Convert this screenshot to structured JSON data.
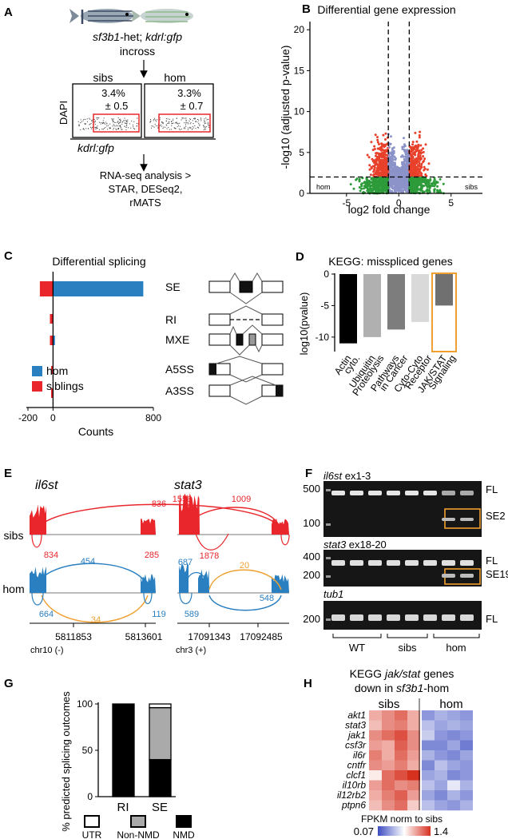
{
  "panels": {
    "A": {
      "letter": "A",
      "cross_line1a": "sf3b1",
      "cross_line1b": "-het; ",
      "cross_line1c": "kdrl:gfp",
      "cross_line2": "incross",
      "sibs_label": "sibs",
      "hom_label": "hom",
      "sibs_pct": "3.4%",
      "sibs_sd": "± 0.5",
      "hom_pct": "3.3%",
      "hom_sd": "± 0.7",
      "y_axis": "DAPI",
      "x_axis": "kdrl:gfp",
      "analysis_line1": "RNA-seq analysis >",
      "analysis_line2": "STAR, DESeq2,",
      "analysis_line3": "rMATS"
    },
    "B": {
      "letter": "B",
      "title": "Differential gene expression",
      "xlabel": "log2 fold change",
      "ylabel": "-log10 (adjusted p-value)",
      "left_note": "hom",
      "right_note": "sibs",
      "xticks": [
        "-5",
        "0",
        "5"
      ],
      "yticks": [
        "0",
        "5",
        "10",
        "15",
        "20"
      ]
    },
    "C": {
      "letter": "C",
      "title": "Differential splicing",
      "xlabel": "Counts",
      "xticks": [
        "-200",
        "0",
        "800"
      ],
      "legend_hom": "hom",
      "legend_sib": "siblings",
      "event_types": [
        "SE",
        "RI",
        "MXE",
        "A5SS",
        "A3SS"
      ]
    },
    "D": {
      "letter": "D",
      "title": "KEGG: misspliced genes",
      "ylabel": "log10(pvalue)",
      "yticks": [
        "0",
        "-5",
        "-10"
      ],
      "categories": [
        "Actin cyto.",
        "Ubiquitin Proteolysis",
        "Pathways in Cancer",
        "Cyto-Cyto Receptor",
        "JAK/STAT Signaling"
      ]
    },
    "E": {
      "letter": "E",
      "gene1": "il6st",
      "gene2": "stat3",
      "row_sibs": "sibs",
      "row_hom": "hom",
      "il6st_sibs_top": "836",
      "il6st_sibs_left": "834",
      "il6st_sibs_right": "285",
      "il6st_hom_top": "454",
      "il6st_hom_bottom": "34",
      "il6st_hom_left": "664",
      "il6st_hom_right": "119",
      "stat3_sibs_left": "1558",
      "stat3_sibs_top": "1009",
      "stat3_sibs_mid": "1878",
      "stat3_hom_left": "687",
      "stat3_hom_top": "20",
      "stat3_hom_mid": "548",
      "stat3_hom_bottom": "589",
      "il6st_coord1": "5811853",
      "il6st_coord2": "5813601",
      "il6st_chr": "chr10 (-)",
      "stat3_coord1": "17091343",
      "stat3_coord2": "17092485",
      "stat3_chr": "chr3 (+)"
    },
    "F": {
      "letter": "F",
      "gel1_title_gene": "il6st",
      "gel1_title_rest": " ex1-3",
      "gel1_y_top": "500",
      "gel1_y_bottom": "100",
      "gel1_label_top": "FL",
      "gel1_label_bottom": "SE2",
      "gel2_title_gene": "stat3",
      "gel2_title_rest": " ex18-20",
      "gel2_y_top": "400",
      "gel2_y_bottom": "200",
      "gel2_label_top": "FL",
      "gel2_label_bottom": "SE19",
      "gel3_title": "tub1",
      "gel3_y": "200",
      "gel3_label": "FL",
      "groups": [
        "WT",
        "sibs",
        "hom"
      ]
    },
    "G": {
      "letter": "G",
      "ylabel": "% predicted splicing outcomes",
      "yticks": [
        "0",
        "50",
        "100"
      ],
      "legend": [
        "UTR",
        "Non-NMD",
        "NMD"
      ]
    },
    "H": {
      "letter": "H",
      "title_line1": "KEGG jak/stat genes",
      "title_line2a": "down in ",
      "title_line2b": "sf3b1",
      "title_line2c": "-hom",
      "col_sibs": "sibs",
      "col_hom": "hom",
      "genes": [
        "akt1",
        "stat3",
        "jak1",
        "csf3r",
        "il6r",
        "cntfr",
        "clcf1",
        "il10rb",
        "il12rb2",
        "ptpn6"
      ],
      "scale_title": "FPKM norm to sibs",
      "scale_min": "0.07",
      "scale_max": "1.4"
    }
  },
  "chart_data": [
    {
      "type": "scatter",
      "title": "Differential gene expression",
      "xlabel": "log2 fold change",
      "ylabel": "-log10 (adjusted p-value)",
      "xlim": [
        -8.5,
        8
      ],
      "ylim": [
        0,
        21
      ],
      "thresholds": {
        "log2fc": [
          -1,
          1
        ],
        "neg_log10_padj": 2
      },
      "colors": {
        "significant": "#e8402a",
        "fc_only": "#2d9b3a",
        "ns": "#8b93c9"
      }
    },
    {
      "type": "bar",
      "title": "Differential splicing",
      "xlabel": "Counts",
      "orientation": "horizontal",
      "categories": [
        "SE",
        "RI",
        "MXE",
        "A5SS",
        "A3SS"
      ],
      "series": [
        {
          "name": "hom",
          "values": [
            720,
            0,
            15,
            0,
            0
          ],
          "color": "#2a7fc0"
        },
        {
          "name": "siblings",
          "values": [
            -105,
            -25,
            -25,
            -15,
            -15
          ],
          "color": "#e8262b"
        }
      ],
      "xlim": [
        -200,
        800
      ]
    },
    {
      "type": "bar",
      "title": "KEGG: misspliced genes",
      "ylabel": "log10(pvalue)",
      "categories": [
        "Actin cyto.",
        "Ubiquitin Proteolysis",
        "Pathways in Cancer",
        "Cyto-Cyto Receptor",
        "JAK/STAT Signaling"
      ],
      "values": [
        -11,
        -10,
        -8.8,
        -7.6,
        -5
      ],
      "colors": [
        "#000000",
        "#b0b0b0",
        "#7d7d7d",
        "#d9d9d9",
        "#707070"
      ],
      "ylim": [
        -12.3,
        0
      ],
      "highlight": "JAK/STAT Signaling"
    },
    {
      "type": "bar",
      "stacked": true,
      "ylabel": "% predicted splicing outcomes",
      "categories": [
        "RI",
        "SE"
      ],
      "series": [
        {
          "name": "NMD",
          "values": [
            100,
            40
          ]
        },
        {
          "name": "Non-NMD",
          "values": [
            0,
            56
          ]
        },
        {
          "name": "UTR",
          "values": [
            0,
            4
          ]
        }
      ],
      "ylim": [
        0,
        100
      ]
    },
    {
      "type": "heatmap",
      "title": "KEGG jak/stat genes down in sf3b1-hom",
      "rows": [
        "akt1",
        "stat3",
        "jak1",
        "csf3r",
        "il6r",
        "cntfr",
        "clcf1",
        "il10rb",
        "il12rb2",
        "ptpn6"
      ],
      "columns": [
        "sibs",
        "sibs",
        "sibs",
        "sibs",
        "hom",
        "hom",
        "hom",
        "hom"
      ],
      "values": [
        [
          1.0,
          1.1,
          1.2,
          1.0,
          0.35,
          0.45,
          0.4,
          0.35
        ],
        [
          0.95,
          1.1,
          1.15,
          1.0,
          0.5,
          0.4,
          0.45,
          0.4
        ],
        [
          1.1,
          1.2,
          1.3,
          1.1,
          0.55,
          0.35,
          0.3,
          0.35
        ],
        [
          1.05,
          1.0,
          1.25,
          1.1,
          0.3,
          0.3,
          0.4,
          0.25
        ],
        [
          1.15,
          1.0,
          1.2,
          1.05,
          0.45,
          0.35,
          0.3,
          0.4
        ],
        [
          1.1,
          1.05,
          1.15,
          1.0,
          0.3,
          0.5,
          0.4,
          0.35
        ],
        [
          0.8,
          1.2,
          1.3,
          1.4,
          0.4,
          0.45,
          0.3,
          0.35
        ],
        [
          1.05,
          1.2,
          1.1,
          1.15,
          0.5,
          0.4,
          0.65,
          0.45
        ],
        [
          1.0,
          1.15,
          1.25,
          1.05,
          0.4,
          0.3,
          0.45,
          0.35
        ],
        [
          0.95,
          1.1,
          1.2,
          0.9,
          0.5,
          0.4,
          0.35,
          0.45
        ]
      ],
      "scale": {
        "min": 0.07,
        "max": 1.4,
        "low_color": "#3b4cc0",
        "high_color": "#d6301f"
      }
    }
  ]
}
